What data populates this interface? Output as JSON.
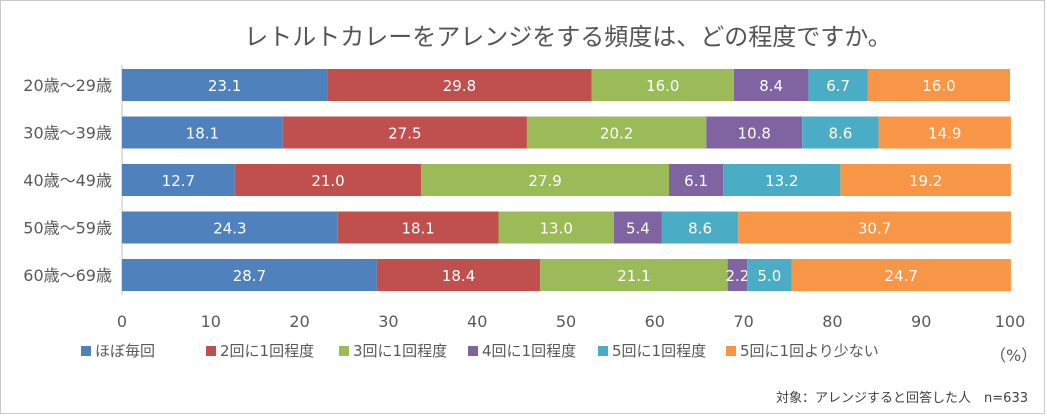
{
  "chart_data": {
    "type": "bar",
    "orientation": "horizontal",
    "stacked": true,
    "title": "レトルトカレーをアレンジをする頻度は、どの程度ですか。",
    "categories": [
      "20歳～29歳",
      "30歳～39歳",
      "40歳～49歳",
      "50歳～59歳",
      "60歳～69歳"
    ],
    "series": [
      {
        "name": "ほぼ毎回",
        "color": "#4F81BD",
        "values": [
          23.1,
          18.1,
          12.7,
          24.3,
          28.7
        ]
      },
      {
        "name": "2回に1回程度",
        "color": "#C0504D",
        "values": [
          29.8,
          27.5,
          21.0,
          18.1,
          18.4
        ]
      },
      {
        "name": "3回に1回程度",
        "color": "#9BBB59",
        "values": [
          16.0,
          20.2,
          27.9,
          13.0,
          21.1
        ]
      },
      {
        "name": "4回に1回程度",
        "color": "#8064A2",
        "values": [
          8.4,
          10.8,
          6.1,
          5.4,
          2.2
        ]
      },
      {
        "name": "5回に1回程度",
        "color": "#4BACC6",
        "values": [
          6.7,
          8.6,
          13.2,
          8.6,
          5.0
        ]
      },
      {
        "name": "5回に1回より少ない",
        "color": "#F79646",
        "values": [
          16.0,
          14.9,
          19.2,
          30.7,
          24.7
        ]
      }
    ],
    "xlim": [
      0,
      100
    ],
    "xticks": [
      0,
      10,
      20,
      30,
      40,
      50,
      60,
      70,
      80,
      90,
      100
    ],
    "x_unit": "（%）",
    "legend_position": "bottom",
    "grid": false,
    "footnote": "対象：アレンジすると回答した人　n=633"
  }
}
